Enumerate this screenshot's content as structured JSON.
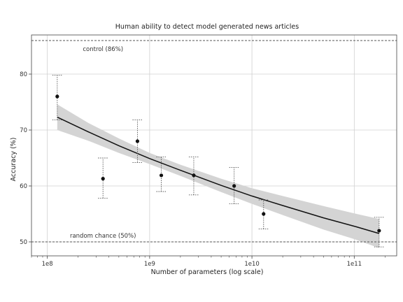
{
  "chart_data": {
    "type": "scatter",
    "title": "Human ability to detect model generated news articles",
    "xlabel": "Number of parameters (log scale)",
    "ylabel": "Accuracy (%)",
    "xscale": "log",
    "xlim": [
      70000000,
      260000000000
    ],
    "ylim": [
      47.5,
      87
    ],
    "grid": true,
    "x_ticks": [
      {
        "value": 100000000,
        "label": "1e8"
      },
      {
        "value": 1000000000,
        "label": "1e9"
      },
      {
        "value": 10000000000,
        "label": "1e10"
      },
      {
        "value": 100000000000,
        "label": "1e11"
      }
    ],
    "y_ticks": [
      {
        "value": 50,
        "label": "50"
      },
      {
        "value": 60,
        "label": "60"
      },
      {
        "value": 70,
        "label": "70"
      },
      {
        "value": 80,
        "label": "80"
      }
    ],
    "reference_lines": [
      {
        "y": 86,
        "label": "control (86%)"
      },
      {
        "y": 50,
        "label": "random chance (50%)"
      }
    ],
    "points": [
      {
        "x": 125000000,
        "y": 76.0,
        "lo": 71.8,
        "hi": 79.8
      },
      {
        "x": 350000000,
        "y": 61.3,
        "lo": 57.8,
        "hi": 65.0
      },
      {
        "x": 760000000,
        "y": 68.0,
        "lo": 64.2,
        "hi": 71.8
      },
      {
        "x": 1300000000,
        "y": 61.9,
        "lo": 59.0,
        "hi": 65.2
      },
      {
        "x": 2700000000,
        "y": 61.9,
        "lo": 58.4,
        "hi": 65.2
      },
      {
        "x": 6700000000,
        "y": 60.0,
        "lo": 56.8,
        "hi": 63.3
      },
      {
        "x": 13000000000,
        "y": 55.0,
        "lo": 52.3,
        "hi": 57.5
      },
      {
        "x": 175000000000,
        "y": 52.0,
        "lo": 49.1,
        "hi": 54.4
      }
    ],
    "trend": {
      "x": [
        125000000,
        250000000,
        500000000,
        1000000000,
        2000000000,
        5000000000,
        10000000000,
        20000000000,
        50000000000,
        100000000000,
        175000000000
      ],
      "y": [
        72.3,
        69.7,
        67.2,
        64.9,
        62.8,
        60.1,
        58.2,
        56.5,
        54.3,
        52.8,
        51.5
      ],
      "lo": [
        70.0,
        68.1,
        65.9,
        63.9,
        61.8,
        58.9,
        56.8,
        54.8,
        52.2,
        50.5,
        48.9
      ],
      "hi": [
        74.6,
        71.3,
        68.5,
        65.9,
        63.8,
        61.3,
        59.6,
        58.2,
        56.4,
        55.1,
        54.1
      ]
    },
    "colors": {
      "band": "#d4d4d4",
      "line": "#111111",
      "point": "#111111",
      "grid": "#d0d0d0",
      "reference": "#555555"
    }
  }
}
